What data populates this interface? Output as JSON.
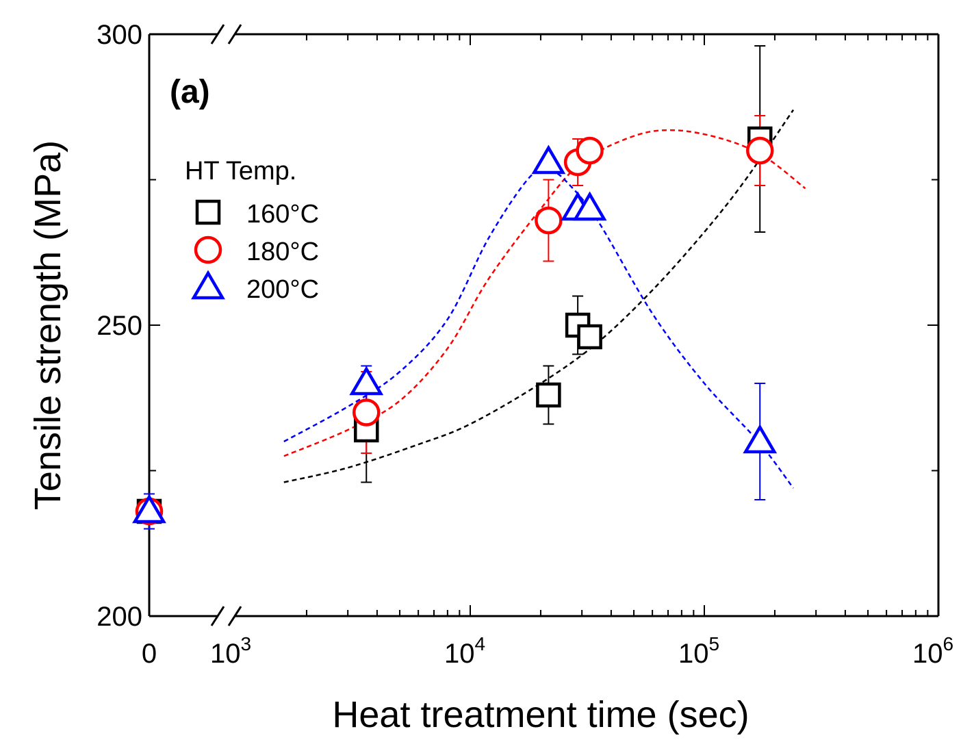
{
  "chart_data": {
    "type": "scatter",
    "panel_label": "(a)",
    "xlabel": "Heat treatment time (sec)",
    "ylabel": "Tensile strength (MPa)",
    "x_scale": "log",
    "x_axis_break": true,
    "x_break_tick_label": "0",
    "x_log_range": [
      1000,
      1000000
    ],
    "x_tick_labels": [
      {
        "base": "10",
        "exp": "3",
        "value": 1000
      },
      {
        "base": "10",
        "exp": "4",
        "value": 10000
      },
      {
        "base": "10",
        "exp": "5",
        "value": 100000
      },
      {
        "base": "10",
        "exp": "6",
        "value": 1000000
      }
    ],
    "ylim": [
      200,
      300
    ],
    "y_tick_labels": [
      "200",
      "250",
      "300"
    ],
    "y_tick_values": [
      200,
      250,
      300
    ],
    "legend": {
      "title": "HT Temp.",
      "position": "top-left"
    },
    "series": [
      {
        "name": "160°C",
        "marker": "square",
        "color": "#000000",
        "points": [
          {
            "x": 0,
            "y": 218,
            "err": 3
          },
          {
            "x": 3600,
            "y": 232,
            "err": 9
          },
          {
            "x": 21600,
            "y": 238,
            "err": 5
          },
          {
            "x": 28800,
            "y": 250,
            "err": 5
          },
          {
            "x": 32400,
            "y": 248,
            "err": 2
          },
          {
            "x": 172800,
            "y": 282,
            "err": 16
          }
        ],
        "fit": [
          [
            1600,
            223
          ],
          [
            3000,
            225.5
          ],
          [
            6000,
            229.5
          ],
          [
            10000,
            233
          ],
          [
            20000,
            240
          ],
          [
            35000,
            247
          ],
          [
            60000,
            256
          ],
          [
            100000,
            266
          ],
          [
            150000,
            275
          ],
          [
            240000,
            287
          ]
        ]
      },
      {
        "name": "180°C",
        "marker": "circle",
        "color": "#ff0000",
        "points": [
          {
            "x": 0,
            "y": 218,
            "err": 3
          },
          {
            "x": 3600,
            "y": 235,
            "err": 7
          },
          {
            "x": 21600,
            "y": 268,
            "err": 7
          },
          {
            "x": 28800,
            "y": 278,
            "err": 4
          },
          {
            "x": 32400,
            "y": 280,
            "err": 1
          },
          {
            "x": 172800,
            "y": 280,
            "err": 6
          }
        ],
        "fit": [
          [
            1600,
            227.5
          ],
          [
            3000,
            232
          ],
          [
            5000,
            237
          ],
          [
            8000,
            246
          ],
          [
            12000,
            258
          ],
          [
            20000,
            270
          ],
          [
            30000,
            278
          ],
          [
            50000,
            282.5
          ],
          [
            75000,
            283.5
          ],
          [
            120000,
            282
          ],
          [
            180000,
            279
          ],
          [
            270000,
            273.5
          ]
        ]
      },
      {
        "name": "200°C",
        "marker": "triangle",
        "color": "#0000ff",
        "points": [
          {
            "x": 0,
            "y": 218,
            "err": 3
          },
          {
            "x": 3600,
            "y": 240,
            "err": 3
          },
          {
            "x": 21600,
            "y": 278,
            "err": 1
          },
          {
            "x": 28800,
            "y": 270,
            "err": 1
          },
          {
            "x": 32400,
            "y": 270,
            "err": 1
          },
          {
            "x": 172800,
            "y": 230,
            "err": 10
          }
        ],
        "fit": [
          [
            1600,
            230
          ],
          [
            3000,
            236
          ],
          [
            5000,
            242
          ],
          [
            8000,
            251
          ],
          [
            12000,
            265
          ],
          [
            18000,
            275.5
          ],
          [
            22000,
            276.5
          ],
          [
            26000,
            274.5
          ],
          [
            35000,
            268
          ],
          [
            60000,
            252
          ],
          [
            100000,
            240
          ],
          [
            170000,
            230
          ],
          [
            240000,
            222
          ]
        ]
      }
    ]
  }
}
